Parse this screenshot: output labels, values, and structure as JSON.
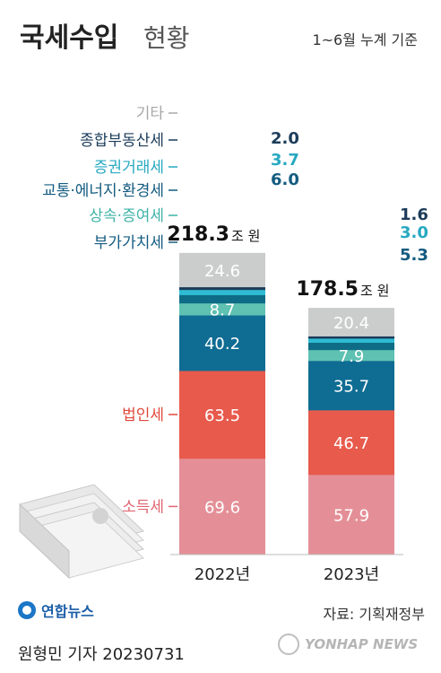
{
  "title": "국세수입",
  "title_suffix": "현황",
  "subtitle": "1~6월 누계 기준",
  "unit_label": "조 원",
  "source": "자료: 기획재정부",
  "credit": "원형민 기자  20230731",
  "brand": "연합뉴스",
  "watermark": "YONHAP NEWS",
  "chart_data": {
    "type": "bar",
    "stacked": true,
    "categories": [
      "2022년",
      "2023년"
    ],
    "totals": [
      218.3,
      178.5
    ],
    "series": [
      {
        "name": "소득세",
        "values": [
          69.6,
          57.9
        ],
        "color": "#e48f97",
        "label_color": "#e06670"
      },
      {
        "name": "법인세",
        "values": [
          63.5,
          46.7
        ],
        "color": "#e75a4c",
        "label_color": "#e0493c"
      },
      {
        "name": "부가가치세",
        "values": [
          40.2,
          35.7
        ],
        "color": "#0f6c93",
        "label_color": "#135b80"
      },
      {
        "name": "상속·증여세",
        "values": [
          8.7,
          7.9
        ],
        "color": "#5ec1b2",
        "label_color": "#3fb3a8"
      },
      {
        "name": "교통·에너지·환경세",
        "values": [
          6.0,
          5.3
        ],
        "color": "#0f6c86",
        "label_color": "#135b80"
      },
      {
        "name": "증권거래세",
        "values": [
          3.7,
          3.0
        ],
        "color": "#2fbcd3",
        "label_color": "#27a9c1"
      },
      {
        "name": "종합부동산세",
        "values": [
          2.0,
          1.6
        ],
        "color": "#1c3c5a",
        "label_color": "#1c3c5a"
      },
      {
        "name": "기타",
        "values": [
          24.6,
          20.4
        ],
        "color": "#cbcdcd",
        "label_color": "#a8a8a8"
      }
    ]
  }
}
